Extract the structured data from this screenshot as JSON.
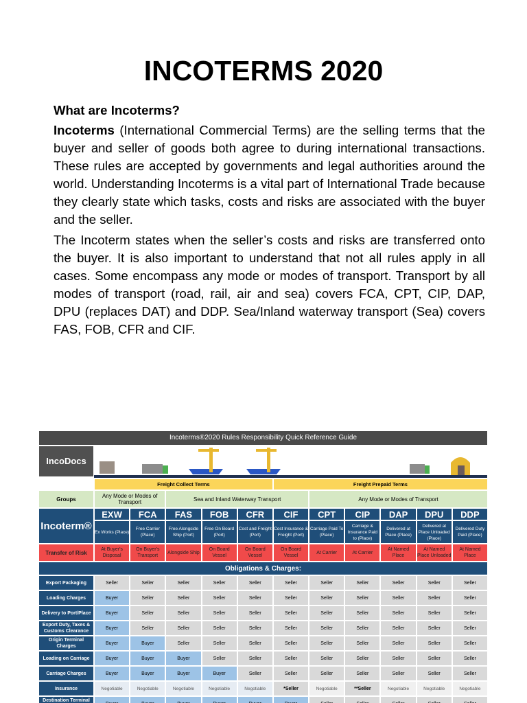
{
  "title": "INCOTERMS 2020",
  "heading": "What are Incoterms?",
  "para1_bold": "Incoterms",
  "para1": " (International Commercial Terms) are the selling terms that the buyer and seller of goods both agree to during international transactions.  These rules are accepted by governments and legal authorities around the world. Understanding Incoterms is a vital part of International Trade because they clearly state which tasks, costs and risks are associated with the buyer and the seller.",
  "para2": "The Incoterm states when the seller’s costs and risks are transferred onto the buyer.  It is also important to understand that not all rules apply in all cases.  Some encompass any mode or modes of transport.  Transport by all modes of transport (road, rail, air and sea) covers FCA, CPT, CIP, DAP, DPU (replaces DAT) and DDP.  Sea/Inland waterway transport (Sea) covers FAS, FOB, CFR and CIF.",
  "guide": {
    "title": "Incoterms®2020 Rules Responsibility Quick Reference Guide",
    "logo": "IncoDocs",
    "freight_collect": "Freight Collect Terms",
    "freight_prepaid": "Freight Prepaid Terms",
    "groups_label": "Groups",
    "groups": [
      "Any Mode or Modes of Transport",
      "Sea and Inland Waterway Transport",
      "Any Mode or Modes of Transport"
    ],
    "incoterm_label": "Incoterm®",
    "codes": [
      "EXW",
      "FCA",
      "FAS",
      "FOB",
      "CFR",
      "CIF",
      "CPT",
      "CIP",
      "DAP",
      "DPU",
      "DDP"
    ],
    "descriptions": [
      "Ex Works (Place)",
      "Free Carrier (Place)",
      "Free Alongside Ship (Port)",
      "Free On Board (Port)",
      "Cost and Freight (Port)",
      "Cost Insurance & Freight (Port)",
      "Carriage Paid To (Place)",
      "Carriage & Insurance Paid to (Place)",
      "Delivered at Place (Place)",
      "Delivered at Place Unloaded (Place)",
      "Delivered Duty Paid (Place)"
    ],
    "risk_label": "Transfer of Risk",
    "risk": [
      "At Buyer's Disposal",
      "On Buyer's Transport",
      "Alongside Ship",
      "On Board Vessel",
      "On Board Vessel",
      "On Board Vessel",
      "At Carrier",
      "At Carrier",
      "At Named Place",
      "At Named Place Unloaded",
      "At Named Place"
    ],
    "obligations_title": "Obligations & Charges:",
    "rows": [
      {
        "label": "Export Packaging",
        "values": [
          "Seller",
          "Seller",
          "Seller",
          "Seller",
          "Seller",
          "Seller",
          "Seller",
          "Seller",
          "Seller",
          "Seller",
          "Seller"
        ]
      },
      {
        "label": "Loading Charges",
        "values": [
          "Buyer",
          "Seller",
          "Seller",
          "Seller",
          "Seller",
          "Seller",
          "Seller",
          "Seller",
          "Seller",
          "Seller",
          "Seller"
        ]
      },
      {
        "label": "Delivery to Port/Place",
        "values": [
          "Buyer",
          "Seller",
          "Seller",
          "Seller",
          "Seller",
          "Seller",
          "Seller",
          "Seller",
          "Seller",
          "Seller",
          "Seller"
        ]
      },
      {
        "label": "Export Duty, Taxes & Customs Clearance",
        "values": [
          "Buyer",
          "Seller",
          "Seller",
          "Seller",
          "Seller",
          "Seller",
          "Seller",
          "Seller",
          "Seller",
          "Seller",
          "Seller"
        ]
      },
      {
        "label": "Origin Terminal Charges",
        "values": [
          "Buyer",
          "Buyer",
          "Seller",
          "Seller",
          "Seller",
          "Seller",
          "Seller",
          "Seller",
          "Seller",
          "Seller",
          "Seller"
        ]
      },
      {
        "label": "Loading on Carriage",
        "values": [
          "Buyer",
          "Buyer",
          "Buyer",
          "Seller",
          "Seller",
          "Seller",
          "Seller",
          "Seller",
          "Seller",
          "Seller",
          "Seller"
        ]
      },
      {
        "label": "Carriage Charges",
        "values": [
          "Buyer",
          "Buyer",
          "Buyer",
          "Buyer",
          "Seller",
          "Seller",
          "Seller",
          "Seller",
          "Seller",
          "Seller",
          "Seller"
        ]
      },
      {
        "label": "Insurance",
        "values": [
          "Negotiable",
          "Negotiable",
          "Negotiable",
          "Negotiable",
          "Negotiable",
          "*Seller",
          "Negotiable",
          "**Seller",
          "Negotiable",
          "Negotiable",
          "Negotiable"
        ]
      },
      {
        "label": "Destination Terminal Charges",
        "values": [
          "Buyer",
          "Buyer",
          "Buyer",
          "Buyer",
          "Buyer",
          "Buyer",
          "Seller",
          "Seller",
          "Seller",
          "Seller",
          "Seller"
        ]
      }
    ],
    "colors": {
      "buyer": "#9dc3e6",
      "seller": "#d9d9d9",
      "navy": "#1f4e79",
      "risk": "#f04a4a",
      "yellow": "#fbd55a",
      "green": "#d6e8c4"
    }
  }
}
